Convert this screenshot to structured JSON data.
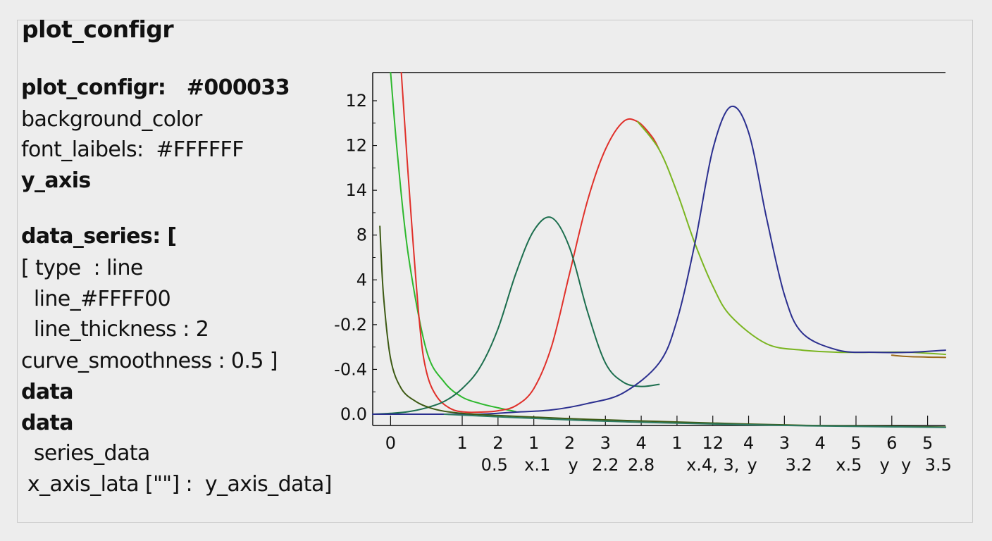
{
  "title": "plot_configr",
  "config_lines": [
    {
      "text": "plot_configr:   #000033",
      "bold": true
    },
    {
      "text": "background_color",
      "bold": false
    },
    {
      "text": "font_laibels:  #FFFFFF",
      "bold": false
    },
    {
      "text": "y_axis",
      "bold": true
    },
    {
      "text": "data_series: [",
      "bold": true
    },
    {
      "text": "[ type  : line",
      "bold": false
    },
    {
      "text": "  line_#FFFF00",
      "bold": false
    },
    {
      "text": "  line_thickness : 2",
      "bold": false
    },
    {
      "text": "curve_smoothness : 0.5 ]",
      "bold": false
    },
    {
      "text": "data",
      "bold": true
    },
    {
      "text": "data",
      "bold": true
    },
    {
      "text": "  series_data",
      "bold": false
    },
    {
      "text": " x_axis_lata [\"\"] :  y_axis_data]",
      "bold": false
    }
  ],
  "chart_data": {
    "type": "line",
    "title": "",
    "xlabel": "",
    "ylabel": "",
    "grid": false,
    "legend": "none",
    "xlim": [
      0,
      16
    ],
    "ylim": [
      0,
      8
    ],
    "y_tick_labels": [
      "12",
      "12",
      "14",
      "8",
      "4",
      "-0.2",
      "-0.4",
      "0.0"
    ],
    "y_tick_values": [
      7.5,
      6.5,
      5.5,
      4.5,
      3.5,
      2.5,
      1.5,
      0.5
    ],
    "x_tick_labels": [
      "0",
      "1",
      "2",
      "1",
      "2",
      "3",
      "4",
      "1",
      "12",
      "4",
      "3",
      "4",
      "5",
      "6",
      "5"
    ],
    "x_tick_values": [
      0.5,
      2.5,
      3.5,
      4.5,
      5.5,
      6.5,
      7.5,
      8.5,
      9.5,
      10.5,
      11.5,
      12.5,
      13.5,
      14.5,
      15.5
    ],
    "x_sub_labels": [
      "0.5",
      "x.1",
      "y",
      "2.2",
      "2.8",
      "x.4, 3,",
      "y",
      "3.2",
      "x.5",
      "y",
      "y",
      "3.5"
    ],
    "x_sub_values": [
      3.4,
      4.6,
      5.6,
      6.5,
      7.5,
      9.5,
      10.6,
      11.9,
      13.3,
      14.3,
      14.9,
      15.8
    ],
    "series": [
      {
        "color": "#2db82d",
        "x": [
          0.5,
          0.7,
          1.0,
          1.5,
          2.0,
          2.5,
          3.0,
          3.5,
          4.0
        ],
        "y": [
          8.0,
          6.0,
          3.7,
          1.5,
          0.75,
          0.4,
          0.25,
          0.15,
          0.06
        ]
      },
      {
        "color": "#e0302a",
        "x": [
          0.8,
          1.0,
          1.3,
          1.5,
          1.8,
          2.2,
          2.6,
          3.0,
          3.5,
          4.0,
          4.5,
          5.0,
          5.5,
          6.0,
          6.5,
          7.0,
          7.4,
          7.8,
          8.0
        ],
        "y": [
          8.0,
          5.5,
          2.2,
          1.0,
          0.4,
          0.12,
          0.05,
          0.05,
          0.08,
          0.2,
          0.6,
          1.6,
          3.3,
          5.0,
          6.2,
          6.85,
          6.85,
          6.5,
          6.2
        ]
      },
      {
        "color": "#7ab520",
        "x": [
          7.4,
          8.0,
          8.5,
          9.0,
          9.5,
          10.0,
          11.0,
          12.0,
          13.0,
          14.0,
          15.0,
          16.0
        ],
        "y": [
          6.85,
          6.2,
          5.2,
          4.0,
          3.0,
          2.3,
          1.65,
          1.5,
          1.45,
          1.45,
          1.45,
          1.4
        ]
      },
      {
        "color": "#1c6e4e",
        "x": [
          0.0,
          0.5,
          1.0,
          1.5,
          2.0,
          2.5,
          3.0,
          3.5,
          4.0,
          4.5,
          5.0,
          5.5,
          6.0,
          6.5,
          7.0,
          7.5,
          8.0
        ],
        "y": [
          0.0,
          0.02,
          0.06,
          0.15,
          0.3,
          0.6,
          1.1,
          2.0,
          3.3,
          4.3,
          4.6,
          3.9,
          2.4,
          1.2,
          0.75,
          0.65,
          0.7
        ]
      },
      {
        "color": "#2b2f8f",
        "x": [
          0.0,
          1.0,
          2.0,
          3.0,
          4.0,
          5.0,
          6.0,
          7.0,
          8.0,
          8.5,
          9.0,
          9.5,
          10.0,
          10.5,
          11.0,
          11.5,
          12.0,
          13.0,
          14.0,
          15.0,
          16.0
        ],
        "y": [
          0.0,
          0.0,
          0.0,
          0.0,
          0.05,
          0.1,
          0.25,
          0.5,
          1.2,
          2.2,
          4.0,
          6.2,
          7.2,
          6.6,
          4.6,
          2.8,
          1.9,
          1.5,
          1.45,
          1.45,
          1.5
        ]
      },
      {
        "color": "#3d5a14",
        "x": [
          0.2,
          0.3,
          0.5,
          0.8,
          1.2,
          1.6,
          2.0,
          2.5,
          3.0,
          4.0,
          6.0,
          8.0,
          10.0,
          12.0,
          14.0,
          16.0
        ],
        "y": [
          4.4,
          2.8,
          1.3,
          0.6,
          0.3,
          0.15,
          0.07,
          0.02,
          -0.01,
          -0.05,
          -0.12,
          -0.17,
          -0.22,
          -0.26,
          -0.28,
          -0.3
        ]
      },
      {
        "color": "#2e7b63",
        "x": [
          2.0,
          4.0,
          6.0,
          8.0,
          10.0,
          12.0,
          14.0,
          16.0
        ],
        "y": [
          0.0,
          -0.08,
          -0.15,
          -0.2,
          -0.24,
          -0.27,
          -0.29,
          -0.31
        ]
      },
      {
        "color": "#9a6a1a",
        "x": [
          14.5,
          15.0,
          16.0
        ],
        "y": [
          1.38,
          1.35,
          1.33
        ]
      }
    ]
  }
}
